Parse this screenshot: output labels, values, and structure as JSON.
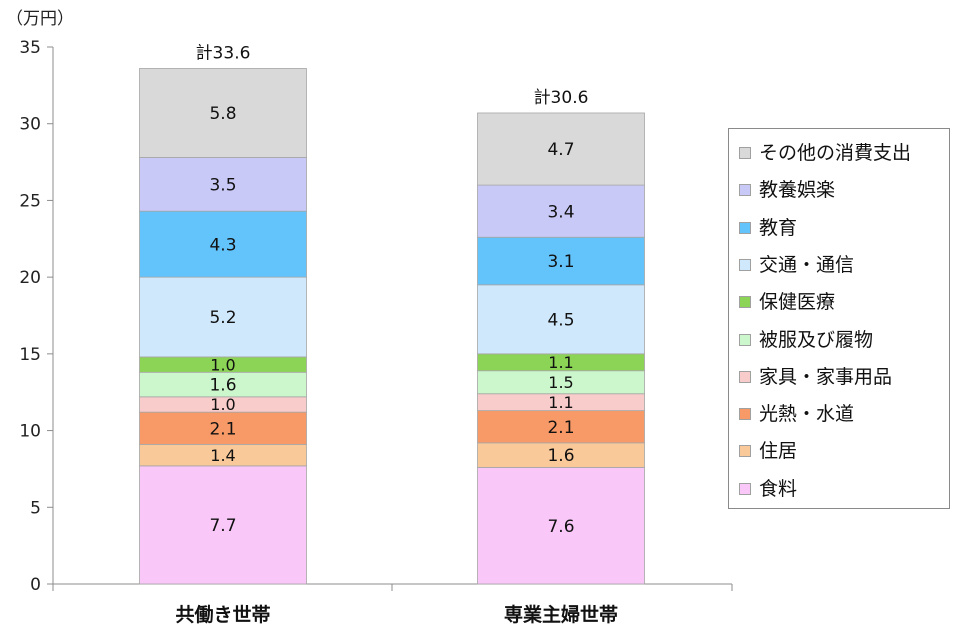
{
  "chart_data": {
    "type": "bar",
    "stacked": true,
    "unit_label": "（万円）",
    "categories": [
      "共働き世帯",
      "専業主婦世帯"
    ],
    "totals": [
      "計33.6",
      "計30.6"
    ],
    "ylim": [
      0,
      35
    ],
    "yticks": [
      "0",
      "5",
      "10",
      "15",
      "20",
      "25",
      "30",
      "35"
    ],
    "grid": false,
    "legend_position": "right",
    "series": [
      {
        "name": "食料",
        "values": [
          7.7,
          7.6
        ],
        "labels": [
          "7.7",
          "7.6"
        ],
        "color": "#f9c8f9"
      },
      {
        "name": "住居",
        "values": [
          1.4,
          1.6
        ],
        "labels": [
          "1.4",
          "1.6"
        ],
        "color": "#f9c99a"
      },
      {
        "name": "光熱・水道",
        "values": [
          2.1,
          2.1
        ],
        "labels": [
          "2.1",
          "2.1"
        ],
        "color": "#f79a68"
      },
      {
        "name": "家具・家事用品",
        "values": [
          1.0,
          1.1
        ],
        "labels": [
          "1.0",
          "1.1"
        ],
        "color": "#f9cccc"
      },
      {
        "name": "被服及び履物",
        "values": [
          1.6,
          1.5
        ],
        "labels": [
          "1.6",
          "1.5"
        ],
        "color": "#ccf7cc"
      },
      {
        "name": "保健医療",
        "values": [
          1.0,
          1.1
        ],
        "labels": [
          "1.0",
          "1.1"
        ],
        "color": "#8cd455"
      },
      {
        "name": "交通・通信",
        "values": [
          5.2,
          4.5
        ],
        "labels": [
          "5.2",
          "4.5"
        ],
        "color": "#cfe8fb"
      },
      {
        "name": "教育",
        "values": [
          4.3,
          3.1
        ],
        "labels": [
          "4.3",
          "3.1"
        ],
        "color": "#63c3fb"
      },
      {
        "name": "教養娯楽",
        "values": [
          3.5,
          3.4
        ],
        "labels": [
          "3.5",
          "3.4"
        ],
        "color": "#c9c9f7"
      },
      {
        "name": "その他の消費支出",
        "values": [
          5.8,
          4.7
        ],
        "labels": [
          "5.8",
          "4.7"
        ],
        "color": "#d9d9d9"
      }
    ]
  }
}
